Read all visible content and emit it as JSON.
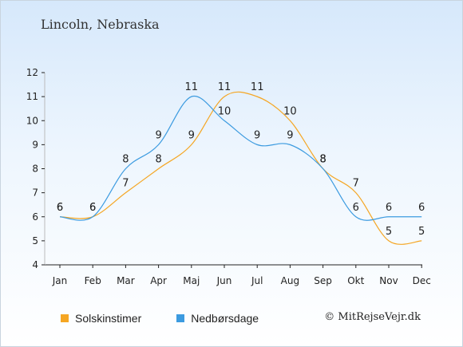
{
  "title": "Lincoln, Nebraska",
  "credit": "© MitRejseVejr.dk",
  "chart_data": {
    "type": "line",
    "categories": [
      "Jan",
      "Feb",
      "Mar",
      "Apr",
      "Maj",
      "Jun",
      "Jul",
      "Aug",
      "Sep",
      "Okt",
      "Nov",
      "Dec"
    ],
    "ylim": [
      4,
      12
    ],
    "yticks": [
      4,
      5,
      6,
      7,
      8,
      9,
      10,
      11,
      12
    ],
    "grid": false,
    "legend_position": "bottom-left",
    "series": [
      {
        "name": "Solskinstimer",
        "color": "#f5a623",
        "values": [
          6,
          6,
          7,
          8,
          9,
          11,
          11,
          10,
          8,
          7,
          5,
          5
        ]
      },
      {
        "name": "Nedbørsdage",
        "color": "#3c9be0",
        "values": [
          6,
          6,
          8,
          9,
          11,
          10,
          9,
          9,
          8,
          6,
          6,
          6
        ]
      }
    ]
  }
}
